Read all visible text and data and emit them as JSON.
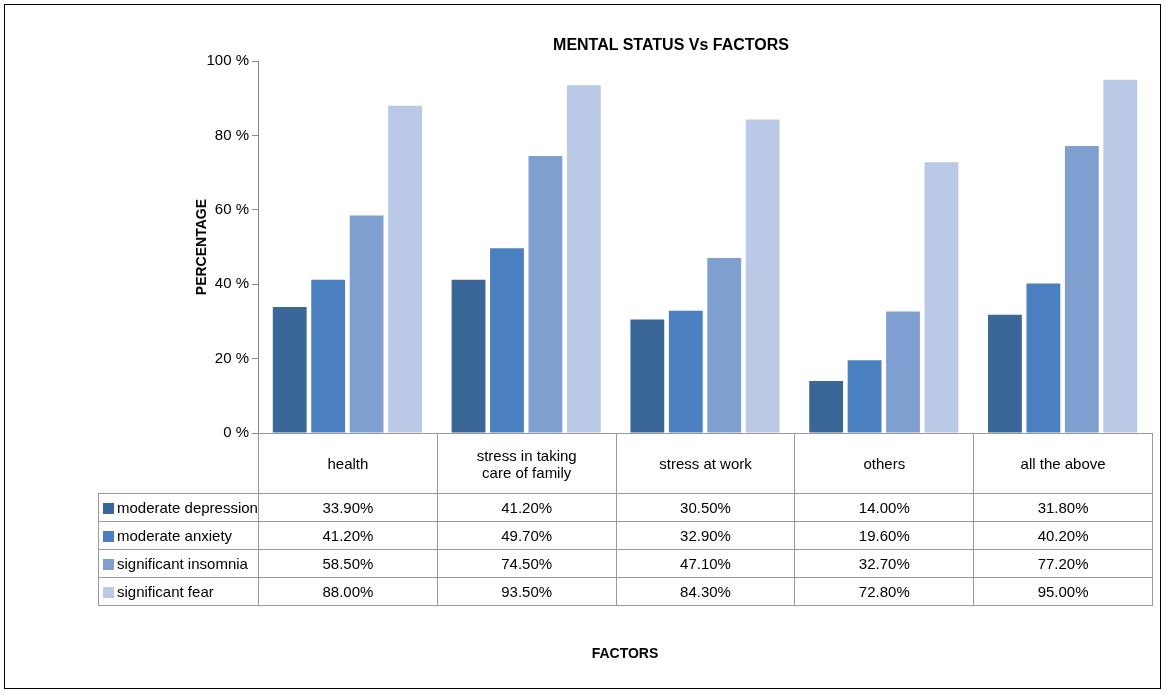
{
  "chart_data": {
    "type": "bar",
    "title": "MENTAL STATUS Vs FACTORS",
    "annotations": [
      "FACTORS"
    ],
    "ylabel": "PERCENTAGE",
    "categories": [
      "health",
      "stress in taking care of family",
      "stress at work",
      "others",
      "all the above"
    ],
    "series": [
      {
        "name": "moderate depression",
        "color": "#3a6797",
        "values": [
          33.9,
          41.2,
          30.5,
          14.0,
          31.8
        ],
        "value_labels": [
          "33.90%",
          "41.20%",
          "30.50%",
          "14.00%",
          "31.80%"
        ]
      },
      {
        "name": "moderate anxiety",
        "color": "#4a7fc0",
        "values": [
          41.2,
          49.7,
          32.9,
          19.6,
          40.2
        ],
        "value_labels": [
          "41.20%",
          "49.70%",
          "32.90%",
          "19.60%",
          "40.20%"
        ]
      },
      {
        "name": "significant insomnia",
        "color": "#7f9fd0",
        "values": [
          58.5,
          74.5,
          47.1,
          32.7,
          77.2
        ],
        "value_labels": [
          "58.50%",
          "74.50%",
          "47.10%",
          "32.70%",
          "77.20%"
        ]
      },
      {
        "name": "significant fear",
        "color": "#b9c9e6",
        "values": [
          88.0,
          93.5,
          84.3,
          72.8,
          95.0
        ],
        "value_labels": [
          "88.00%",
          "93.50%",
          "84.30%",
          "72.80%",
          "95.00%"
        ]
      }
    ],
    "ylim": [
      0,
      100
    ],
    "yticks": [
      {
        "value": 0,
        "label": "0 %"
      },
      {
        "value": 20,
        "label": "20 %"
      },
      {
        "value": 40,
        "label": "40 %"
      },
      {
        "value": 60,
        "label": "60 %"
      },
      {
        "value": 80,
        "label": "80 %"
      },
      {
        "value": 100,
        "label": "100 %"
      }
    ],
    "grid": false,
    "legend": "bottom"
  }
}
